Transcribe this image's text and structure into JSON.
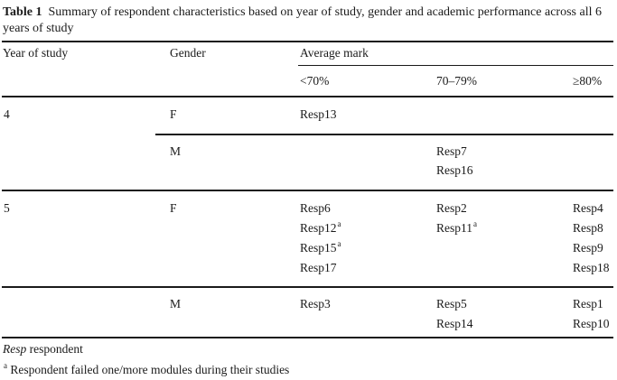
{
  "caption": {
    "label": "Table 1",
    "text": "Summary of respondent characteristics based on year of study, gender and academic performance across all 6 years of study"
  },
  "headers": {
    "year": "Year of study",
    "gender": "Gender",
    "average_mark": "Average mark",
    "bands": [
      "<70%",
      "70–79%",
      "≥80%"
    ]
  },
  "rows": [
    {
      "year": "4",
      "gender": "F",
      "lt70": [
        "Resp13"
      ],
      "mid": [],
      "ge80": []
    },
    {
      "year": "",
      "gender": "M",
      "lt70": [],
      "mid": [
        "Resp7",
        "Resp16"
      ],
      "ge80": []
    },
    {
      "year": "5",
      "gender": "F",
      "lt70": [
        "Resp6",
        "Resp12",
        "Resp15",
        "Resp17"
      ],
      "mid": [
        "Resp2",
        "Resp11"
      ],
      "ge80": [
        "Resp4",
        "Resp8",
        "Resp9",
        "Resp18"
      ]
    },
    {
      "year": "",
      "gender": "M",
      "lt70": [
        "Resp3"
      ],
      "mid": [
        "Resp5",
        "Resp14"
      ],
      "ge80": [
        "Resp1",
        "Resp10"
      ]
    }
  ],
  "superscript_marker": "a",
  "footnotes": {
    "abbr_term": "Resp",
    "abbr_def": "respondent",
    "note_marker": "a",
    "note_text": "Respondent failed one/more modules during their studies"
  }
}
